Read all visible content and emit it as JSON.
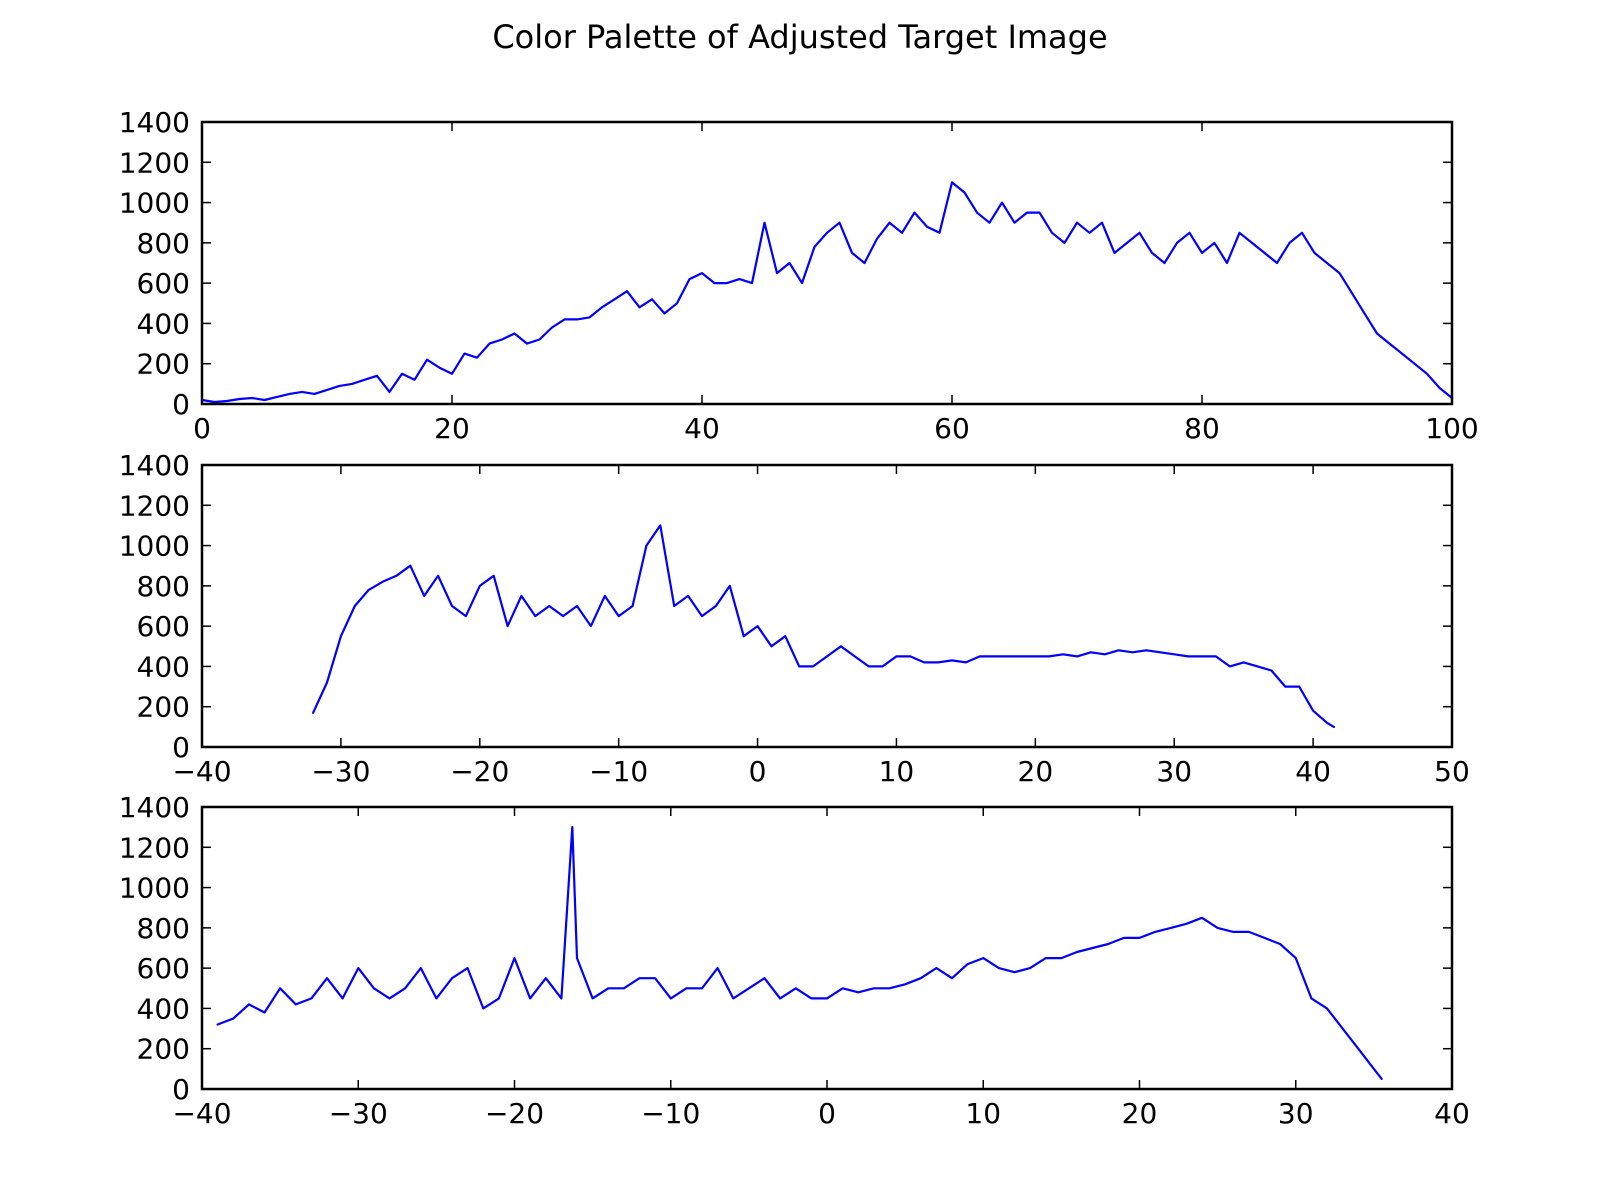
{
  "figure": {
    "title": "Color Palette of Adjusted Target Image",
    "line_color": "#0000ff"
  },
  "chart_data": [
    {
      "type": "line",
      "title": "",
      "xlabel": "",
      "ylabel": "",
      "xlim": [
        0,
        100
      ],
      "ylim": [
        0,
        1400
      ],
      "xticks": [
        0,
        20,
        40,
        60,
        80,
        100
      ],
      "yticks": [
        0,
        200,
        400,
        600,
        800,
        1000,
        1200,
        1400
      ],
      "grid": false,
      "series": [
        {
          "x": [
            0,
            1,
            2,
            3,
            4,
            5,
            6,
            7,
            8,
            9,
            10,
            11,
            12,
            13,
            14,
            15,
            16,
            17,
            18,
            19,
            20,
            21,
            22,
            23,
            24,
            25,
            26,
            27,
            28,
            29,
            30,
            31,
            32,
            33,
            34,
            35,
            36,
            37,
            38,
            39,
            40,
            41,
            42,
            43,
            44,
            45,
            46,
            47,
            48,
            49,
            50,
            51,
            52,
            53,
            54,
            55,
            56,
            57,
            58,
            59,
            60,
            61,
            62,
            63,
            64,
            65,
            66,
            67,
            68,
            69,
            70,
            71,
            72,
            73,
            74,
            75,
            76,
            77,
            78,
            79,
            80,
            81,
            82,
            83,
            84,
            85,
            86,
            87,
            88,
            89,
            90,
            91,
            92,
            93,
            94,
            95,
            96,
            97,
            98,
            99,
            100
          ],
          "y": [
            20,
            10,
            15,
            25,
            30,
            20,
            35,
            50,
            60,
            50,
            70,
            90,
            100,
            120,
            140,
            60,
            150,
            120,
            220,
            180,
            150,
            250,
            230,
            300,
            320,
            350,
            300,
            320,
            380,
            420,
            420,
            430,
            480,
            520,
            560,
            480,
            520,
            450,
            500,
            620,
            650,
            600,
            600,
            620,
            600,
            900,
            650,
            700,
            600,
            780,
            850,
            900,
            750,
            700,
            820,
            900,
            850,
            950,
            880,
            850,
            1100,
            1050,
            950,
            900,
            1000,
            900,
            950,
            950,
            850,
            800,
            900,
            850,
            900,
            750,
            800,
            850,
            750,
            700,
            800,
            850,
            750,
            800,
            700,
            850,
            800,
            750,
            700,
            800,
            850,
            750,
            700,
            650,
            550,
            450,
            350,
            300,
            250,
            200,
            150,
            80,
            30
          ]
        }
      ]
    },
    {
      "type": "line",
      "title": "",
      "xlabel": "",
      "ylabel": "",
      "xlim": [
        -40,
        50
      ],
      "ylim": [
        0,
        1400
      ],
      "xticks": [
        -40,
        -30,
        -20,
        -10,
        0,
        10,
        20,
        30,
        40,
        50
      ],
      "yticks": [
        0,
        200,
        400,
        600,
        800,
        1000,
        1200,
        1400
      ],
      "grid": false,
      "series": [
        {
          "x": [
            -32,
            -31,
            -30,
            -29,
            -28,
            -27,
            -26,
            -25,
            -24,
            -23,
            -22,
            -21,
            -20,
            -19,
            -18,
            -17,
            -16,
            -15,
            -14,
            -13,
            -12,
            -11,
            -10,
            -9,
            -8,
            -7,
            -6,
            -5,
            -4,
            -3,
            -2,
            -1,
            0,
            1,
            2,
            3,
            4,
            5,
            6,
            7,
            8,
            9,
            10,
            11,
            12,
            13,
            14,
            15,
            16,
            17,
            18,
            19,
            20,
            21,
            22,
            23,
            24,
            25,
            26,
            27,
            28,
            29,
            30,
            31,
            32,
            33,
            34,
            35,
            36,
            37,
            38,
            39,
            40,
            41,
            41.5
          ],
          "y": [
            170,
            320,
            550,
            700,
            780,
            820,
            850,
            900,
            750,
            850,
            700,
            650,
            800,
            850,
            600,
            750,
            650,
            700,
            650,
            700,
            600,
            750,
            650,
            700,
            1000,
            1100,
            700,
            750,
            650,
            700,
            800,
            550,
            600,
            500,
            550,
            400,
            400,
            450,
            500,
            450,
            400,
            400,
            450,
            450,
            420,
            420,
            430,
            420,
            450,
            450,
            450,
            450,
            450,
            450,
            460,
            450,
            470,
            460,
            480,
            470,
            480,
            470,
            460,
            450,
            450,
            450,
            400,
            420,
            400,
            380,
            300,
            300,
            180,
            120,
            100
          ]
        }
      ]
    },
    {
      "type": "line",
      "title": "",
      "xlabel": "",
      "ylabel": "",
      "xlim": [
        -40,
        40
      ],
      "ylim": [
        0,
        1400
      ],
      "xticks": [
        -40,
        -30,
        -20,
        -10,
        0,
        10,
        20,
        30,
        40
      ],
      "yticks": [
        0,
        200,
        400,
        600,
        800,
        1000,
        1200,
        1400
      ],
      "grid": false,
      "series": [
        {
          "x": [
            -39,
            -38,
            -37,
            -36,
            -35,
            -34,
            -33,
            -32,
            -31,
            -30,
            -29,
            -28,
            -27,
            -26,
            -25,
            -24,
            -23,
            -22,
            -21,
            -20,
            -19,
            -18,
            -17,
            -16.3,
            -16,
            -15,
            -14,
            -13,
            -12,
            -11,
            -10,
            -9,
            -8,
            -7,
            -6,
            -5,
            -4,
            -3,
            -2,
            -1,
            0,
            1,
            2,
            3,
            4,
            5,
            6,
            7,
            8,
            9,
            10,
            11,
            12,
            13,
            14,
            15,
            16,
            17,
            18,
            19,
            20,
            21,
            22,
            23,
            24,
            25,
            26,
            27,
            28,
            29,
            30,
            31,
            32,
            33,
            34,
            35,
            35.5
          ],
          "y": [
            320,
            350,
            420,
            380,
            500,
            420,
            450,
            550,
            450,
            600,
            500,
            450,
            500,
            600,
            450,
            550,
            600,
            400,
            450,
            650,
            450,
            550,
            450,
            1300,
            650,
            450,
            500,
            500,
            550,
            550,
            450,
            500,
            500,
            600,
            450,
            500,
            550,
            450,
            500,
            450,
            450,
            500,
            480,
            500,
            500,
            520,
            550,
            600,
            550,
            620,
            650,
            600,
            580,
            600,
            650,
            650,
            680,
            700,
            720,
            750,
            750,
            780,
            800,
            820,
            850,
            800,
            780,
            780,
            750,
            720,
            650,
            450,
            400,
            300,
            200,
            100,
            50
          ]
        }
      ]
    }
  ]
}
